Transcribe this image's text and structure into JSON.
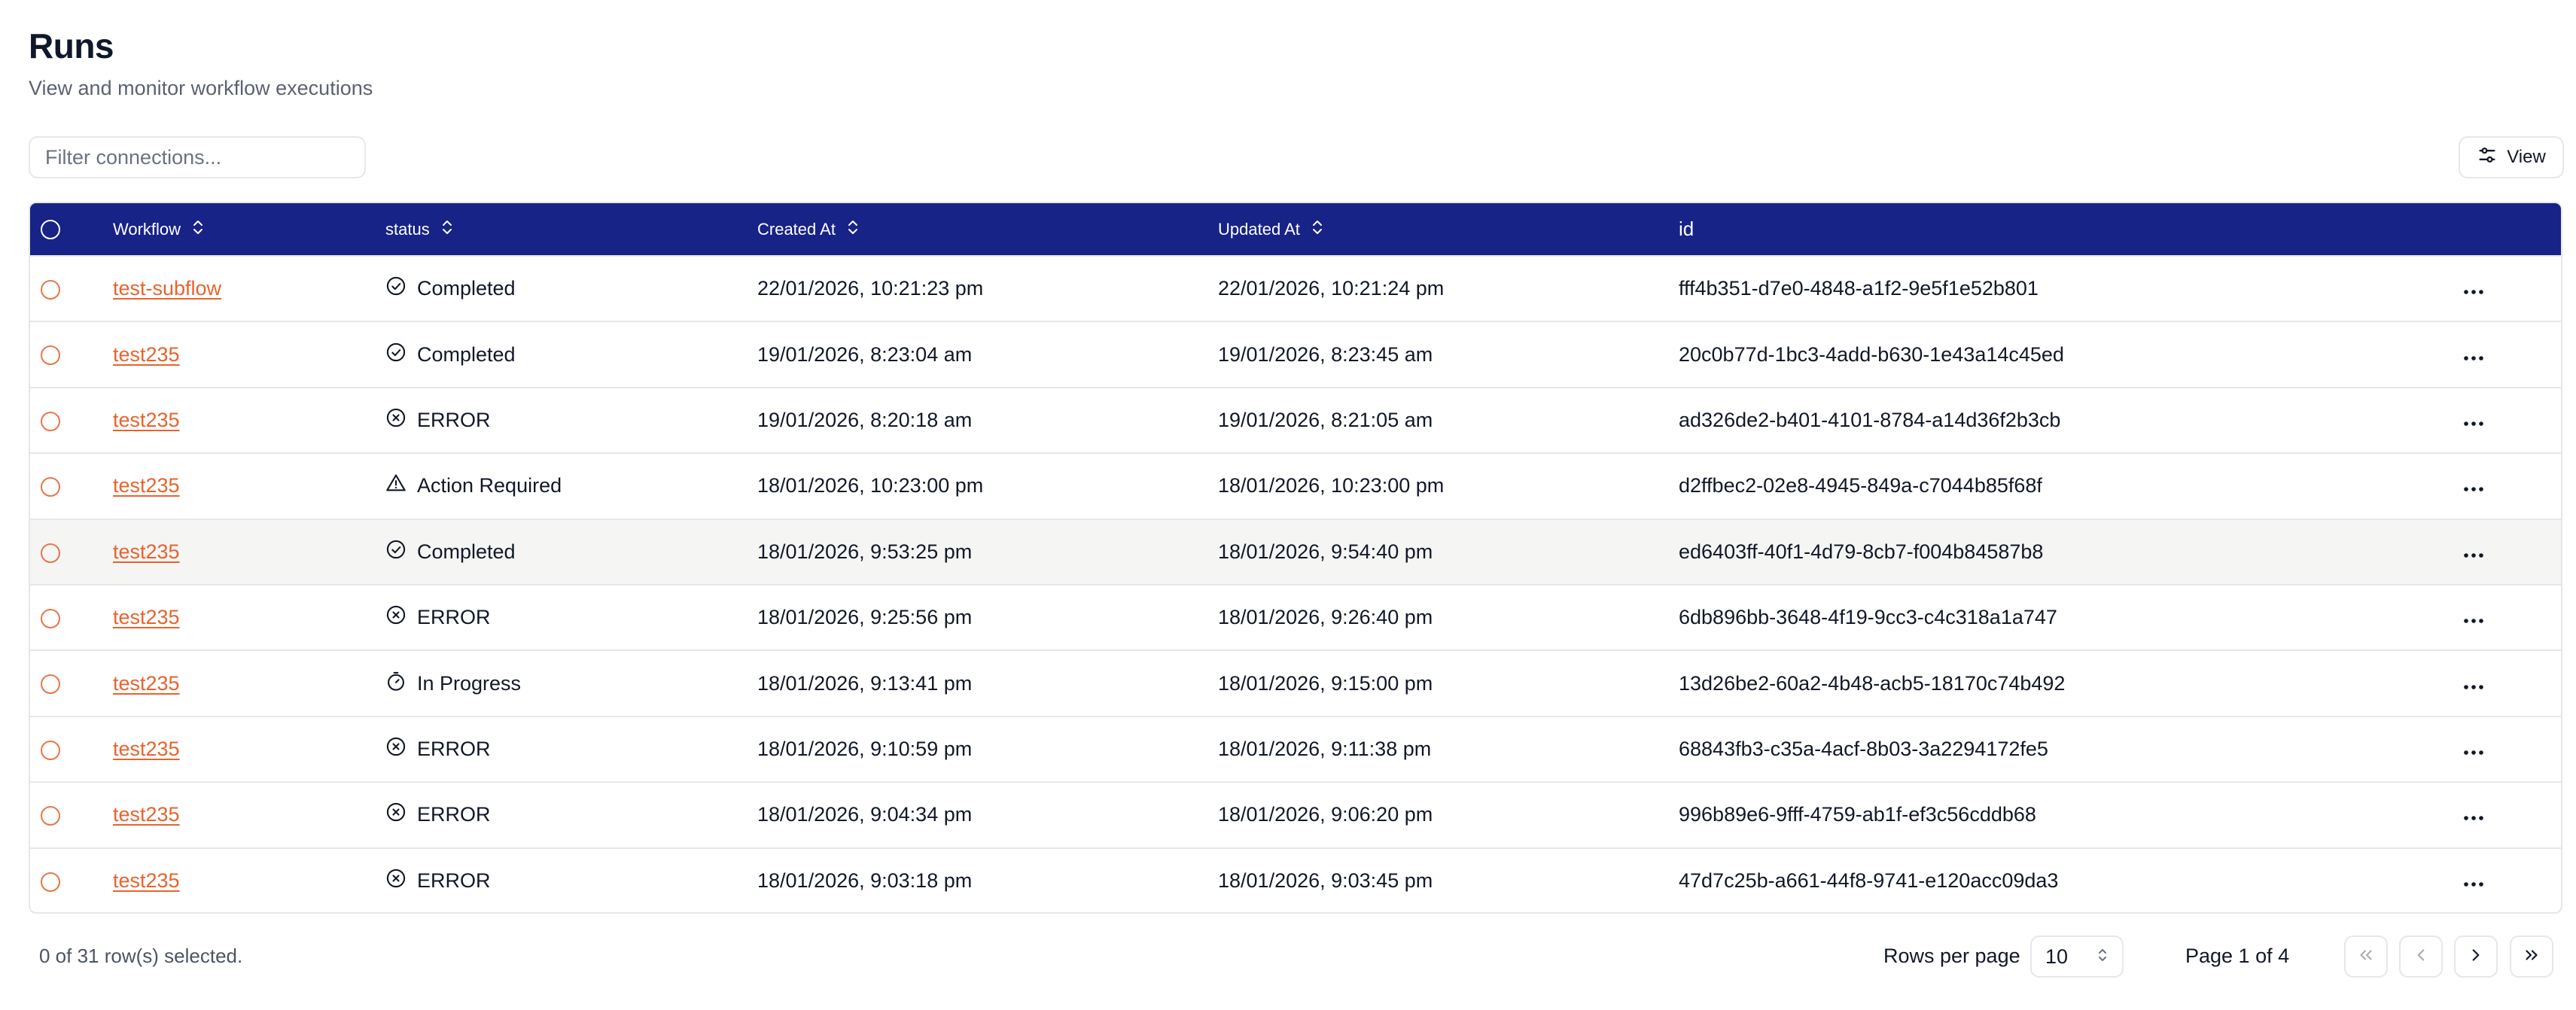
{
  "page": {
    "title": "Runs",
    "subtitle": "View and monitor workflow executions"
  },
  "filter": {
    "placeholder": "Filter connections...",
    "value": ""
  },
  "view_button": {
    "label": "View",
    "icon": "sliders-icon"
  },
  "table": {
    "columns": [
      {
        "key": "workflow",
        "label": "Workflow",
        "sortable": true
      },
      {
        "key": "status",
        "label": "status",
        "sortable": true
      },
      {
        "key": "created_at",
        "label": "Created At",
        "sortable": true
      },
      {
        "key": "updated_at",
        "label": "Updated At",
        "sortable": true
      },
      {
        "key": "id",
        "label": "id",
        "sortable": false
      }
    ],
    "rows": [
      {
        "workflow": "test-subflow",
        "status": "Completed",
        "status_icon": "check-circle-icon",
        "created_at": "22/01/2026, 10:21:23 pm",
        "updated_at": "22/01/2026, 10:21:24 pm",
        "id": "fff4b351-d7e0-4848-a1f2-9e5f1e52b801"
      },
      {
        "workflow": "test235",
        "status": "Completed",
        "status_icon": "check-circle-icon",
        "created_at": "19/01/2026, 8:23:04 am",
        "updated_at": "19/01/2026, 8:23:45 am",
        "id": "20c0b77d-1bc3-4add-b630-1e43a14c45ed"
      },
      {
        "workflow": "test235",
        "status": "ERROR",
        "status_icon": "x-circle-icon",
        "created_at": "19/01/2026, 8:20:18 am",
        "updated_at": "19/01/2026, 8:21:05 am",
        "id": "ad326de2-b401-4101-8784-a14d36f2b3cb"
      },
      {
        "workflow": "test235",
        "status": "Action Required",
        "status_icon": "warning-triangle-icon",
        "created_at": "18/01/2026, 10:23:00 pm",
        "updated_at": "18/01/2026, 10:23:00 pm",
        "id": "d2ffbec2-02e8-4945-849a-c7044b85f68f"
      },
      {
        "workflow": "test235",
        "status": "Completed",
        "status_icon": "check-circle-icon",
        "created_at": "18/01/2026, 9:53:25 pm",
        "updated_at": "18/01/2026, 9:54:40 pm",
        "id": "ed6403ff-40f1-4d79-8cb7-f004b84587b8"
      },
      {
        "workflow": "test235",
        "status": "ERROR",
        "status_icon": "x-circle-icon",
        "created_at": "18/01/2026, 9:25:56 pm",
        "updated_at": "18/01/2026, 9:26:40 pm",
        "id": "6db896bb-3648-4f19-9cc3-c4c318a1a747"
      },
      {
        "workflow": "test235",
        "status": "In Progress",
        "status_icon": "timer-icon",
        "created_at": "18/01/2026, 9:13:41 pm",
        "updated_at": "18/01/2026, 9:15:00 pm",
        "id": "13d26be2-60a2-4b48-acb5-18170c74b492"
      },
      {
        "workflow": "test235",
        "status": "ERROR",
        "status_icon": "x-circle-icon",
        "created_at": "18/01/2026, 9:10:59 pm",
        "updated_at": "18/01/2026, 9:11:38 pm",
        "id": "68843fb3-c35a-4acf-8b03-3a2294172fe5"
      },
      {
        "workflow": "test235",
        "status": "ERROR",
        "status_icon": "x-circle-icon",
        "created_at": "18/01/2026, 9:04:34 pm",
        "updated_at": "18/01/2026, 9:06:20 pm",
        "id": "996b89e6-9fff-4759-ab1f-ef3c56cddb68"
      },
      {
        "workflow": "test235",
        "status": "ERROR",
        "status_icon": "x-circle-icon",
        "created_at": "18/01/2026, 9:03:18 pm",
        "updated_at": "18/01/2026, 9:03:45 pm",
        "id": "47d7c25b-a661-44f8-9741-e120acc09da3"
      }
    ]
  },
  "footer": {
    "selection_text": "0 of 31 row(s) selected.",
    "rows_per_page_label": "Rows per page",
    "rows_per_page_value": "10",
    "page_info": "Page 1 of 4"
  },
  "colors": {
    "header_bg": "#182387",
    "link": "#e8632d",
    "checkbox_border": "#e8764a",
    "highlight_row": "#f5f5f4"
  }
}
